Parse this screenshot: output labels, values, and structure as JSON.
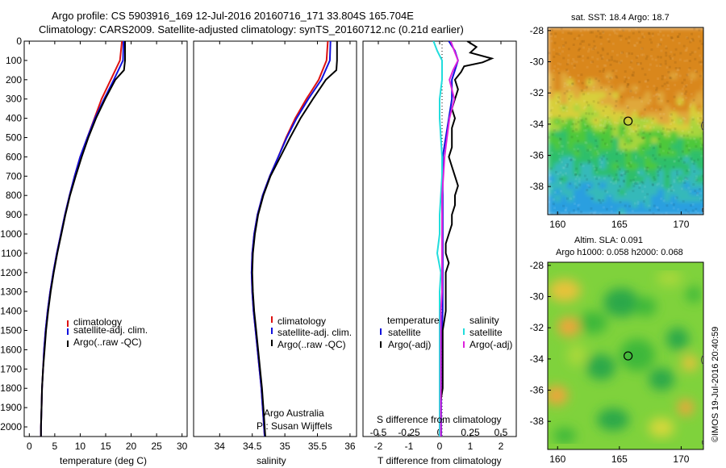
{
  "header": {
    "line1": "Argo profile: CS 5903916_169 12-Jul-2016 20160716_171 33.804S 165.704E",
    "line2": "Climatology: CARS2009. Satellite-adjusted climatology: synTS_20160712.nc (0.21d earlier)"
  },
  "colors": {
    "climatology": "#dd1111",
    "satellite": "#1111dd",
    "argo": "#000000",
    "sal_satellite": "#22dddd",
    "sal_argo": "#dd22dd"
  },
  "chart_data": [
    {
      "id": "temperature",
      "type": "line",
      "xlabel": "temperature (deg C)",
      "xlim": [
        -1,
        31
      ],
      "xticks": [
        0,
        5,
        10,
        15,
        20,
        25,
        30
      ],
      "ylim": [
        2050,
        0
      ],
      "yticks": [
        0,
        100,
        200,
        300,
        400,
        500,
        600,
        700,
        800,
        900,
        1000,
        1100,
        1200,
        1300,
        1400,
        1500,
        1600,
        1700,
        1800,
        1900,
        2000
      ],
      "legend": [
        "climatology",
        "satellite-adj. clim.",
        "Argo(..raw -QC)"
      ],
      "series": [
        {
          "key": "climatology",
          "depth": [
            0,
            100,
            200,
            300,
            400,
            500,
            600,
            700,
            800,
            900,
            1000,
            1100,
            1200,
            1300,
            1400,
            1500,
            1600,
            1700,
            1800,
            1900,
            2000,
            2050
          ],
          "values": [
            18.2,
            17.8,
            16.0,
            14.2,
            12.8,
            11.4,
            10.0,
            8.9,
            7.9,
            7.0,
            6.2,
            5.4,
            4.7,
            4.1,
            3.6,
            3.2,
            2.9,
            2.7,
            2.5,
            2.4,
            2.3,
            2.3
          ]
        },
        {
          "key": "satellite",
          "depth": [
            0,
            100,
            200,
            300,
            400,
            500,
            600,
            700,
            800,
            900,
            1000,
            1100,
            1200,
            1300,
            1400,
            1500,
            1600,
            1700,
            1800,
            1900,
            2000,
            2050
          ],
          "values": [
            18.5,
            18.4,
            16.6,
            14.7,
            12.9,
            11.4,
            10.0,
            8.9,
            7.9,
            7.0,
            6.2,
            5.4,
            4.7,
            4.1,
            3.6,
            3.2,
            2.9,
            2.7,
            2.5,
            2.4,
            2.3,
            2.3
          ]
        },
        {
          "key": "argo",
          "depth": [
            0,
            100,
            150,
            200,
            300,
            400,
            500,
            600,
            700,
            800,
            900,
            1000,
            1100,
            1200,
            1300,
            1400,
            1500,
            1600,
            1700,
            1800,
            1900,
            2000,
            2050
          ],
          "values": [
            18.8,
            18.8,
            18.6,
            16.9,
            14.9,
            13.1,
            11.6,
            10.3,
            9.1,
            8.0,
            7.1,
            6.3,
            5.5,
            4.8,
            4.2,
            3.7,
            3.3,
            3.0,
            2.7,
            2.5,
            2.4,
            2.3,
            2.3
          ]
        }
      ]
    },
    {
      "id": "salinity",
      "type": "line",
      "xlabel": "salinity",
      "xlim": [
        33.6,
        36.1
      ],
      "xticks": [
        34,
        34.5,
        35,
        35.5,
        36
      ],
      "xticklabels": [
        "34",
        "34.5",
        "35",
        "35.5",
        "36"
      ],
      "ylim": [
        2050,
        0
      ],
      "legend": [
        "climatology",
        "satellite-adj. clim.",
        "Argo(..raw -QC)"
      ],
      "annotation": [
        "Argo Australia",
        "PI: Susan Wijffels"
      ],
      "series": [
        {
          "key": "climatology",
          "depth": [
            0,
            100,
            200,
            300,
            400,
            500,
            600,
            700,
            800,
            900,
            1000,
            1100,
            1200,
            1300,
            1400,
            1500,
            1600,
            1700,
            1800,
            1900,
            2000,
            2050
          ],
          "values": [
            35.66,
            35.64,
            35.52,
            35.33,
            35.16,
            35.02,
            34.9,
            34.77,
            34.66,
            34.58,
            34.53,
            34.5,
            34.49,
            34.5,
            34.52,
            34.55,
            34.58,
            34.61,
            34.64,
            34.66,
            34.68,
            34.69
          ]
        },
        {
          "key": "satellite",
          "depth": [
            0,
            100,
            200,
            300,
            400,
            500,
            600,
            700,
            800,
            900,
            1000,
            1100,
            1200,
            1300,
            1400,
            1500,
            1600,
            1700,
            1800,
            1900,
            2000,
            2050
          ],
          "values": [
            35.7,
            35.69,
            35.56,
            35.36,
            35.18,
            35.03,
            34.9,
            34.77,
            34.66,
            34.58,
            34.53,
            34.5,
            34.49,
            34.5,
            34.52,
            34.55,
            34.58,
            34.61,
            34.64,
            34.66,
            34.68,
            34.69
          ]
        },
        {
          "key": "argo",
          "depth": [
            0,
            100,
            150,
            200,
            300,
            400,
            500,
            600,
            700,
            800,
            900,
            1000,
            1100,
            1200,
            1300,
            1400,
            1500,
            1600,
            1700,
            1800,
            1900,
            2000,
            2050
          ],
          "values": [
            35.8,
            35.8,
            35.79,
            35.63,
            35.43,
            35.24,
            35.08,
            34.93,
            34.78,
            34.67,
            34.59,
            34.54,
            34.51,
            34.5,
            34.51,
            34.53,
            34.56,
            34.59,
            34.62,
            34.65,
            34.67,
            34.69,
            34.7
          ]
        }
      ]
    },
    {
      "id": "differences",
      "type": "line",
      "top_xlabel": "S difference from climatology",
      "top_xticks": [
        -0.5,
        -0.25,
        0,
        0.25,
        0.5
      ],
      "top_xticklabels": [
        "-0.5",
        "-0.25",
        "0",
        "0.25",
        "0.5"
      ],
      "xlabel": "T difference from climatology",
      "xlim": [
        -2.5,
        2.5
      ],
      "xticks": [
        -2,
        -1,
        0,
        1,
        2
      ],
      "legend_left_title": "temperature",
      "legend_left": [
        "satellite",
        "Argo(-adj)"
      ],
      "legend_right_title": "salinity",
      "legend_right": [
        "satellite",
        "Argo(-adj)"
      ],
      "series": [
        {
          "key": "T satellite",
          "depth": [
            0,
            50,
            100,
            150,
            200,
            300,
            400,
            500,
            600,
            700,
            800,
            900,
            1000,
            1100,
            1200,
            1300,
            1400,
            1600,
            1800,
            2000,
            2050
          ],
          "values": [
            0.3,
            0.5,
            0.6,
            0.5,
            0.4,
            0.4,
            0.3,
            0.2,
            0.1,
            0.1,
            0.1,
            0.1,
            0.1,
            0.1,
            0.1,
            0.1,
            0.1,
            0.05,
            0.05,
            0.05,
            0.05
          ]
        },
        {
          "key": "T Argo",
          "depth": [
            0,
            30,
            60,
            90,
            110,
            130,
            160,
            200,
            250,
            300,
            350,
            400,
            450,
            500,
            550,
            600,
            650,
            700,
            750,
            800,
            850,
            900,
            950,
            1000,
            1050,
            1100,
            1150,
            1200,
            1300,
            1400,
            1500,
            1600,
            1700,
            1800,
            1900,
            2000,
            2050
          ],
          "values": [
            0.9,
            1.2,
            1.0,
            1.7,
            1.4,
            0.8,
            0.7,
            0.5,
            0.6,
            0.5,
            0.4,
            0.5,
            0.4,
            0.4,
            0.4,
            0.3,
            0.4,
            0.5,
            0.6,
            0.5,
            0.5,
            0.4,
            0.4,
            0.3,
            0.2,
            0.2,
            0.3,
            0.2,
            0.2,
            0.2,
            0.1,
            0.1,
            0.1,
            0.1,
            0.0,
            0.0,
            0.0
          ]
        },
        {
          "key": "S satellite",
          "depth": [
            0,
            50,
            100,
            200,
            300,
            400,
            500,
            600,
            700,
            800,
            900,
            1000,
            1100,
            1200,
            1300,
            1400,
            1600,
            1800,
            2000,
            2050
          ],
          "values": [
            -0.05,
            -0.02,
            0.02,
            0.02,
            0.0,
            0.0,
            0.01,
            0.02,
            0.02,
            0.01,
            0.0,
            0.0,
            -0.02,
            0.01,
            0.0,
            0.0,
            0.0,
            0.0,
            0.0,
            0.0
          ]
        },
        {
          "key": "S Argo",
          "depth": [
            0,
            50,
            100,
            150,
            200,
            300,
            400,
            500,
            600,
            700,
            800,
            900,
            1000,
            1100,
            1200,
            1300,
            1400,
            1600,
            1800,
            2000,
            2050
          ],
          "values": [
            0.09,
            0.12,
            0.15,
            0.11,
            0.08,
            0.12,
            0.08,
            0.06,
            0.04,
            0.03,
            0.02,
            0.02,
            0.02,
            0.02,
            0.02,
            0.02,
            0.01,
            0.01,
            0.01,
            0.01,
            0.01
          ]
        }
      ]
    },
    {
      "id": "sst_map",
      "type": "heatmap",
      "title": "sat. SST: 18.4  Argo: 18.7",
      "xlim": [
        159.2,
        171.8
      ],
      "ylim": [
        -39.8,
        -27.8
      ],
      "xticks": [
        160,
        165,
        170
      ],
      "yticks": [
        -28,
        -30,
        -32,
        -34,
        -36,
        -38
      ],
      "marker": {
        "lon": 165.704,
        "lat": -33.804
      }
    },
    {
      "id": "sla_map",
      "type": "heatmap",
      "title_line1": "Altim. SLA: 0.091",
      "title_line2": "Argo h1000: 0.058  h2000: 0.068",
      "xlim": [
        159.2,
        171.8
      ],
      "ylim": [
        -39.8,
        -27.8
      ],
      "xticks": [
        160,
        165,
        170
      ],
      "yticks": [
        -28,
        -30,
        -32,
        -34,
        -36,
        -38
      ],
      "marker": {
        "lon": 165.704,
        "lat": -33.804
      }
    }
  ],
  "credit": "©IMOS 19-Jul-2016 20:40:59"
}
